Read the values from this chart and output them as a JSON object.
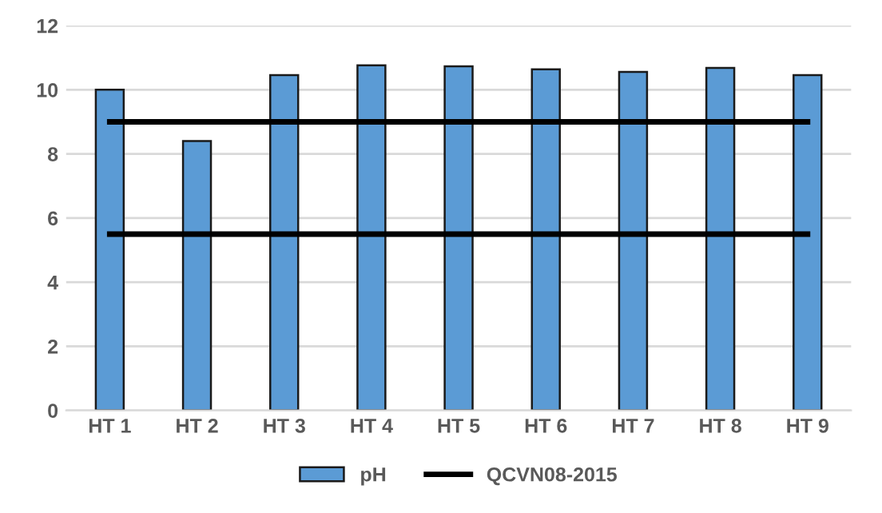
{
  "chart_data": {
    "type": "bar",
    "categories": [
      "HT 1",
      "HT 2",
      "HT 3",
      "HT 4",
      "HT 5",
      "HT 6",
      "HT 7",
      "HT 8",
      "HT 9"
    ],
    "series": [
      {
        "name": "pH",
        "color": "#5b9bd5",
        "values": [
          10.0,
          8.4,
          10.46,
          10.76,
          10.73,
          10.64,
          10.56,
          10.68,
          10.46
        ]
      },
      {
        "name": "QCVN08-2015",
        "type": "line",
        "color": "#000000",
        "values": [
          9,
          9,
          9,
          9,
          9,
          9,
          9,
          9,
          9
        ]
      },
      {
        "type": "line",
        "color": "#000000",
        "values": [
          5.5,
          5.5,
          5.5,
          5.5,
          5.5,
          5.5,
          5.5,
          5.5,
          5.5
        ]
      }
    ],
    "ylim": [
      0,
      12
    ],
    "yticks": [
      0,
      2,
      4,
      6,
      8,
      10,
      12
    ],
    "grid": "y",
    "legend": "bottom",
    "marker": "none",
    "line_style": "solid"
  }
}
